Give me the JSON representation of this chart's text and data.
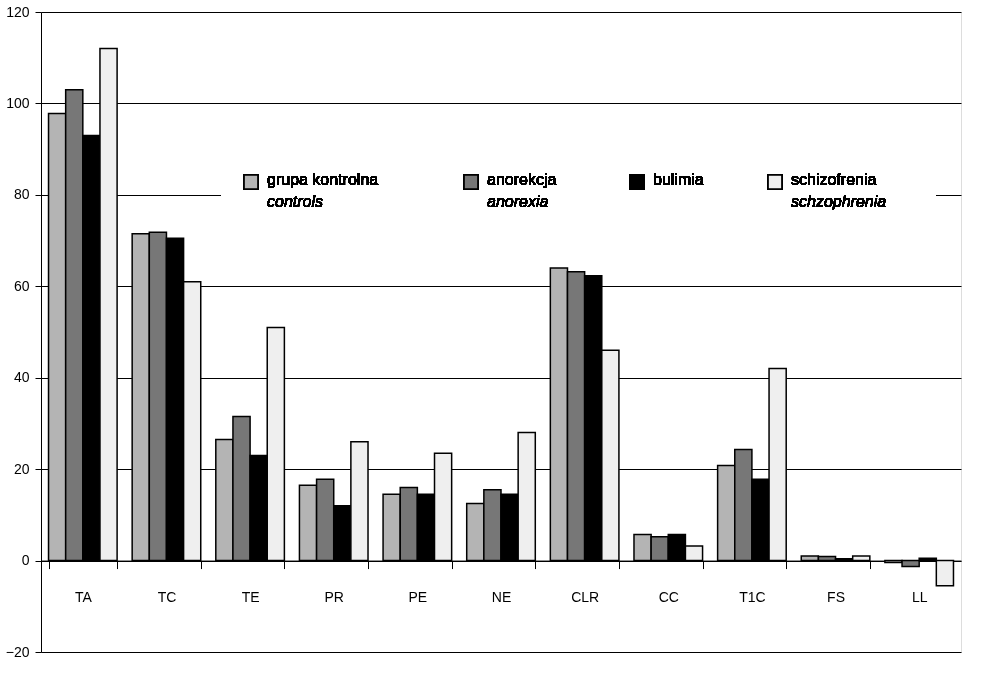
{
  "chart_data": {
    "type": "bar",
    "categories": [
      "TA",
      "TC",
      "TE",
      "PR",
      "PE",
      "NE",
      "CLR",
      "CC",
      "T1C",
      "FS",
      "LL"
    ],
    "series": [
      {
        "name": "grupa kontrolna\ncontrols",
        "color": "#b4b4b4",
        "values": [
          97.8,
          71.5,
          26.5,
          16.5,
          14.5,
          12.5,
          64,
          5.7,
          20.8,
          1.0,
          -0.4
        ]
      },
      {
        "name": "anorekcja\nanorexia",
        "color": "#777777",
        "values": [
          103,
          71.8,
          31.5,
          17.8,
          16,
          15.5,
          63.2,
          5.2,
          24.3,
          0.9,
          -1.3
        ]
      },
      {
        "name": "bulimia",
        "color": "#000000",
        "values": [
          93,
          70.5,
          23,
          12,
          14.5,
          14.5,
          62.3,
          5.7,
          17.8,
          0.4,
          0.5
        ]
      },
      {
        "name": "schizofrenia\nschzophrenia",
        "color": "#efefef",
        "values": [
          112,
          61,
          51,
          26,
          23.5,
          28,
          46,
          3.2,
          42,
          1.0,
          -5.5
        ]
      }
    ],
    "ylim": [
      -20,
      120
    ],
    "yticks": [
      -20,
      0,
      20,
      40,
      60,
      80,
      100,
      120
    ],
    "grid": "y",
    "legend": "top"
  }
}
